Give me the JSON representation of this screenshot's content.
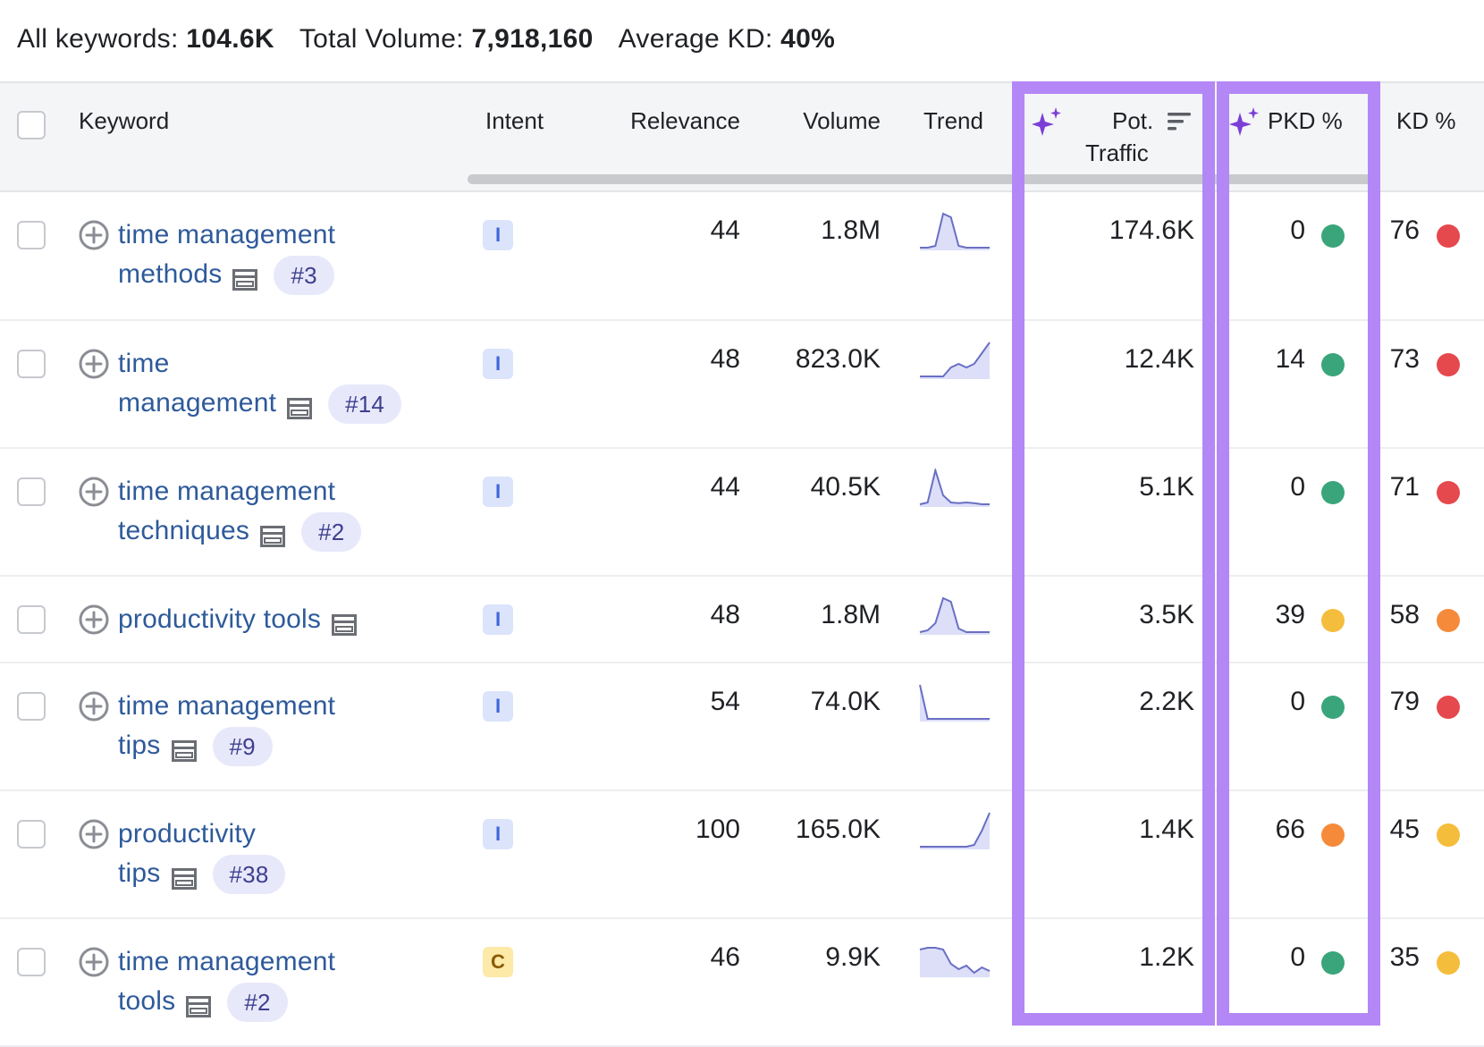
{
  "summary": {
    "all_keywords_label": "All keywords:",
    "all_keywords_value": "104.6K",
    "total_volume_label": "Total Volume:",
    "total_volume_value": "7,918,160",
    "avg_kd_label": "Average KD:",
    "avg_kd_value": "40%"
  },
  "columns": {
    "keyword": "Keyword",
    "intent": "Intent",
    "relevance": "Relevance",
    "volume": "Volume",
    "trend": "Trend",
    "pot_traffic_line1": "Pot.",
    "pot_traffic_line2": "Traffic",
    "pkd": "PKD %",
    "kd": "KD %"
  },
  "colors": {
    "highlight": "#b487f6",
    "link": "#2e5a9a",
    "green": "#3aa57a",
    "yellow": "#f5bd3c",
    "orange": "#f58a3a",
    "red": "#e5484d"
  },
  "rows": [
    {
      "kw1": "time management",
      "kw2": "methods",
      "position": "#3",
      "intent": "I",
      "relevance": "44",
      "volume": "1.8M",
      "pot_traffic": "174.6K",
      "pkd": "0",
      "pkd_color": "green",
      "kd": "76",
      "kd_color": "red",
      "trend": [
        0.05,
        0.05,
        0.1,
        1.0,
        0.9,
        0.1,
        0.05,
        0.05,
        0.05,
        0.05
      ]
    },
    {
      "kw1": "time",
      "kw2": "management",
      "position": "#14",
      "intent": "I",
      "relevance": "48",
      "volume": "823.0K",
      "pot_traffic": "12.4K",
      "pkd": "14",
      "pkd_color": "green",
      "kd": "73",
      "kd_color": "red",
      "trend": [
        0.05,
        0.05,
        0.05,
        0.05,
        0.3,
        0.4,
        0.3,
        0.4,
        0.7,
        1.0
      ]
    },
    {
      "kw1": "time management",
      "kw2": "techniques",
      "position": "#2",
      "intent": "I",
      "relevance": "44",
      "volume": "40.5K",
      "pot_traffic": "5.1K",
      "pkd": "0",
      "pkd_color": "green",
      "kd": "71",
      "kd_color": "red",
      "trend": [
        0.05,
        0.1,
        1.0,
        0.3,
        0.1,
        0.08,
        0.1,
        0.08,
        0.05,
        0.05
      ]
    },
    {
      "kw1": "productivity tools",
      "kw2": "",
      "position": "",
      "intent": "I",
      "relevance": "48",
      "volume": "1.8M",
      "pot_traffic": "3.5K",
      "pkd": "39",
      "pkd_color": "yellow",
      "kd": "58",
      "kd_color": "orange",
      "trend": [
        0.05,
        0.1,
        0.3,
        1.0,
        0.9,
        0.15,
        0.05,
        0.05,
        0.05,
        0.05
      ]
    },
    {
      "kw1": "time management",
      "kw2": "tips",
      "position": "#9",
      "intent": "I",
      "relevance": "54",
      "volume": "74.0K",
      "pot_traffic": "2.2K",
      "pkd": "0",
      "pkd_color": "green",
      "kd": "79",
      "kd_color": "red",
      "trend": [
        1.0,
        0.05,
        0.05,
        0.05,
        0.05,
        0.05,
        0.05,
        0.05,
        0.05,
        0.05
      ]
    },
    {
      "kw1": "productivity",
      "kw2": "tips",
      "position": "#38",
      "intent": "I",
      "relevance": "100",
      "volume": "165.0K",
      "pot_traffic": "1.4K",
      "pkd": "66",
      "pkd_color": "orange",
      "kd": "45",
      "kd_color": "yellow",
      "trend": [
        0.05,
        0.05,
        0.05,
        0.05,
        0.05,
        0.05,
        0.05,
        0.1,
        0.5,
        1.0
      ]
    },
    {
      "kw1": "time management",
      "kw2": "tools",
      "position": "#2",
      "intent": "C",
      "relevance": "46",
      "volume": "9.9K",
      "pot_traffic": "1.2K",
      "pkd": "0",
      "pkd_color": "green",
      "kd": "35",
      "kd_color": "yellow",
      "trend": [
        0.75,
        0.8,
        0.8,
        0.75,
        0.35,
        0.2,
        0.3,
        0.1,
        0.25,
        0.15
      ]
    }
  ]
}
